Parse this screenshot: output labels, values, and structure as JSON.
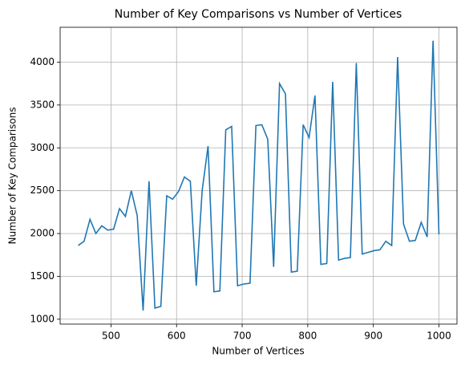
{
  "chart_data": {
    "type": "line",
    "title": "Number of Key Comparisons vs Number of Vertices",
    "xlabel": "Number of Vertices",
    "ylabel": "Number of Key Comparisons",
    "x": [
      450,
      459,
      468,
      477,
      486,
      495,
      504,
      513,
      522,
      531,
      540,
      549,
      558,
      567,
      576,
      585,
      594,
      603,
      612,
      621,
      630,
      639,
      648,
      657,
      666,
      675,
      684,
      693,
      702,
      712,
      721,
      730,
      739,
      748,
      757,
      766,
      775,
      784,
      793,
      802,
      811,
      820,
      829,
      838,
      847,
      856,
      865,
      874,
      883,
      892,
      901,
      910,
      919,
      928,
      937,
      946,
      955,
      964,
      973,
      982,
      991,
      1000
    ],
    "series": [
      {
        "name": "Key Comparisons",
        "color": "#1f77b4",
        "values": [
          1860,
          1910,
          2165,
          2000,
          2090,
          2040,
          2050,
          2290,
          2200,
          2500,
          2210,
          1100,
          2610,
          1130,
          1150,
          2440,
          2400,
          2490,
          2660,
          2610,
          1390,
          2500,
          3020,
          1320,
          1330,
          3210,
          3250,
          1390,
          1410,
          1420,
          3260,
          3270,
          3100,
          1610,
          3750,
          3630,
          1550,
          1560,
          3270,
          3120,
          3610,
          1640,
          1650,
          3770,
          1690,
          1710,
          1720,
          3990,
          1760,
          1780,
          1800,
          1810,
          1910,
          1860,
          4060,
          2110,
          1910,
          1920,
          2130,
          1960,
          4250,
          1990
        ]
      }
    ],
    "xlim": [
      422.5,
      1027.5
    ],
    "ylim": [
      943,
      4407
    ],
    "xticks": [
      500,
      600,
      700,
      800,
      900,
      1000
    ],
    "yticks": [
      1000,
      1500,
      2000,
      2500,
      3000,
      3500,
      4000
    ],
    "grid": true
  }
}
